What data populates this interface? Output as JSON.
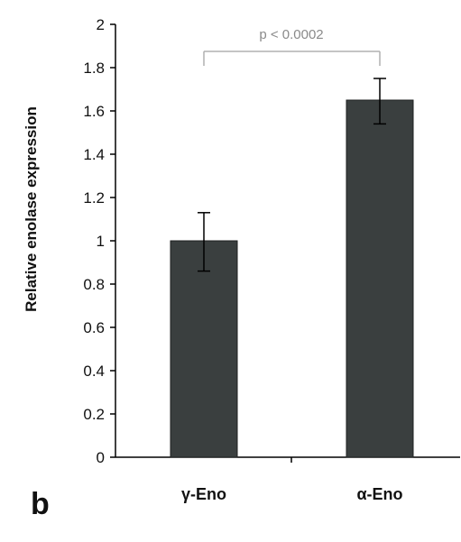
{
  "chart_data": {
    "type": "bar",
    "categories": [
      "γ-Eno",
      "α-Eno"
    ],
    "values": [
      1.0,
      1.65
    ],
    "error": [
      {
        "low": 0.86,
        "high": 1.13
      },
      {
        "low": 1.54,
        "high": 1.75
      }
    ],
    "ylabel": "Relative enolase expression",
    "ylim": [
      0,
      2
    ],
    "yticks": [
      {
        "value": 0,
        "label": "0"
      },
      {
        "value": 0.2,
        "label": "0.2"
      },
      {
        "value": 0.4,
        "label": "0.4"
      },
      {
        "value": 0.6,
        "label": "0.6"
      },
      {
        "value": 0.8,
        "label": "0.8"
      },
      {
        "value": 1,
        "label": "1"
      },
      {
        "value": 1.2,
        "label": "1.2"
      },
      {
        "value": 1.4,
        "label": "1.4"
      },
      {
        "value": 1.6,
        "label": "1.6"
      },
      {
        "value": 1.8,
        "label": "1.8"
      },
      {
        "value": 2,
        "label": "2"
      }
    ],
    "annotation": "p < 0.0002",
    "grid": false,
    "bar_color": "#3a3f3f",
    "bracket_color": "#b0b0b0"
  },
  "panel_label": "b"
}
